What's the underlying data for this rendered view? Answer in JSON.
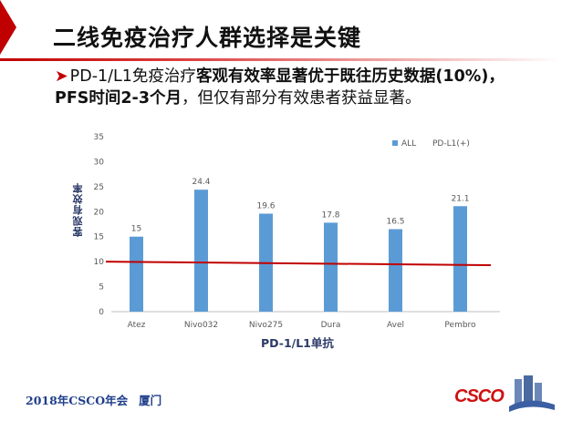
{
  "slide": {
    "title": "二线免疫治疗人群选择是关键",
    "bullet": {
      "part1": "PD-1/L1免疫治疗",
      "part2_bold": "客观有效率显著优于既往历史数据(10%)，PFS时间2-3个月",
      "part3": "，但仅有部分有效患者获益显著。"
    },
    "footer": {
      "event": "2018年CSCO年会",
      "city": "厦门"
    },
    "logo_text": "CSCO"
  },
  "colors": {
    "accent": "#c00000",
    "bar": "#5b9bd5",
    "ref_line": "#c00000",
    "axis_text": "#595959"
  },
  "chart_data": {
    "type": "bar",
    "title": "",
    "xlabel": "PD-1/L1单抗",
    "ylabel": "客观有效率",
    "categories": [
      "Atez",
      "Nivo032",
      "Nivo275",
      "Dura",
      "Avel",
      "Pembro"
    ],
    "series": [
      {
        "name": "ALL",
        "values": [
          15,
          24.4,
          19.6,
          17.8,
          16.5,
          21.1
        ]
      },
      {
        "name": "PD-L1(+)",
        "values": [
          null,
          null,
          null,
          null,
          null,
          null
        ]
      }
    ],
    "data_labels": [
      "15",
      "24.4",
      "19.6",
      "17.8",
      "16.5",
      "21.1"
    ],
    "ylim": [
      0,
      35
    ],
    "yticks": [
      0,
      5,
      10,
      15,
      20,
      25,
      30,
      35
    ],
    "reference_line": {
      "start": 10,
      "end": 9.3
    },
    "legend_position": "top-right",
    "grid": false
  }
}
